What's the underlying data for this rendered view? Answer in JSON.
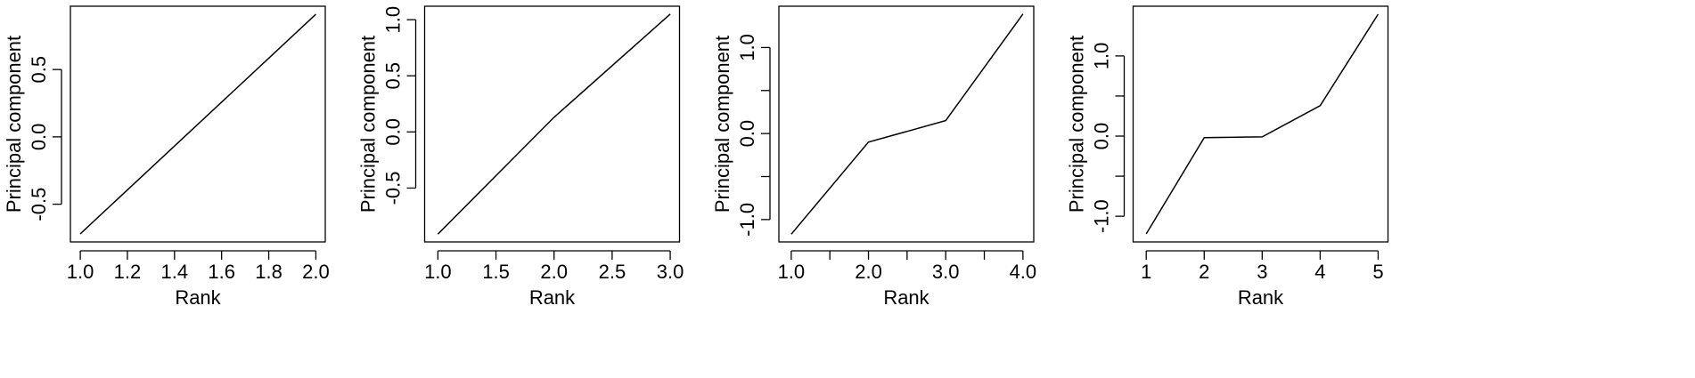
{
  "chart_data": [
    {
      "type": "line",
      "xlabel": "Rank",
      "ylabel": "Principal component",
      "color": "#000000",
      "x": [
        1,
        2
      ],
      "values": [
        -0.72,
        0.91
      ],
      "xlim": [
        0.958,
        2.04
      ],
      "ylim": [
        -0.78,
        0.97
      ],
      "xticks": [
        {
          "value": 1,
          "label": "1.0"
        },
        1.2,
        1.4,
        1.6,
        1.8,
        {
          "value": 2,
          "label": "2.0"
        }
      ],
      "yticks": [
        -0.5,
        {
          "value": 0,
          "label": "0.0"
        },
        0.5
      ]
    },
    {
      "type": "line",
      "xlabel": "Rank",
      "ylabel": "Principal component",
      "color": "#000000",
      "x": [
        1,
        2,
        3
      ],
      "values": [
        -0.91,
        0.13,
        1.05
      ],
      "xlim": [
        0.886,
        3.08
      ],
      "ylim": [
        -0.98,
        1.12
      ],
      "xticks": [
        {
          "value": 1,
          "label": "1.0"
        },
        1.5,
        {
          "value": 2,
          "label": "2.0"
        },
        2.5,
        {
          "value": 3,
          "label": "3.0"
        }
      ],
      "yticks": [
        -0.5,
        {
          "value": 0,
          "label": "0.0"
        },
        0.5,
        {
          "value": 1,
          "label": "1.0"
        }
      ]
    },
    {
      "type": "line",
      "xlabel": "Rank",
      "ylabel": "Principal component",
      "color": "#000000",
      "x": [
        1,
        2,
        3,
        4
      ],
      "values": [
        -1.17,
        -0.1,
        0.15,
        1.39
      ],
      "xlim": [
        0.84,
        4.14
      ],
      "ylim": [
        -1.26,
        1.48
      ],
      "xticks": [
        {
          "value": 1,
          "label": "1.0"
        },
        {
          "value": 2,
          "label": "2.0"
        },
        {
          "value": 3,
          "label": "3.0"
        },
        {
          "value": 4,
          "label": "4.0"
        }
      ],
      "xminor": [
        1.5,
        2.5,
        3.5
      ],
      "yticks": [
        {
          "value": -1,
          "label": "-1.0"
        },
        {
          "value": 0,
          "label": "0.0"
        },
        {
          "value": 1,
          "label": "1.0"
        }
      ],
      "yminor": [
        -0.5,
        0.5
      ]
    },
    {
      "type": "line",
      "xlabel": "Rank",
      "ylabel": "Principal component",
      "color": "#000000",
      "x": [
        1,
        2,
        3,
        4,
        5
      ],
      "values": [
        -1.22,
        -0.02,
        -0.01,
        0.38,
        1.52
      ],
      "xlim": [
        0.774,
        5.17
      ],
      "ylim": [
        -1.32,
        1.62
      ],
      "xticks": [
        1,
        2,
        3,
        4,
        5
      ],
      "yticks": [
        {
          "value": -1,
          "label": "-1.0"
        },
        {
          "value": 0,
          "label": "0.0"
        },
        {
          "value": 1,
          "label": "1.0"
        }
      ],
      "yminor": [
        -0.5,
        0.5
      ]
    }
  ]
}
